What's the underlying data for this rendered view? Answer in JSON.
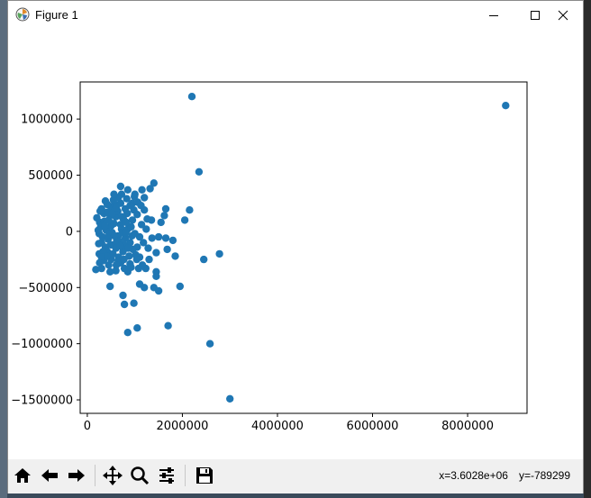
{
  "window": {
    "title": "Figure 1"
  },
  "toolbar": {
    "buttons": [
      {
        "name": "home-button",
        "icon": "home-icon"
      },
      {
        "name": "back-button",
        "icon": "arrow-left-icon"
      },
      {
        "name": "forward-button",
        "icon": "arrow-right-icon"
      },
      {
        "name": "pan-button",
        "icon": "move-icon"
      },
      {
        "name": "zoom-button",
        "icon": "magnifier-icon"
      },
      {
        "name": "configure-subplots-button",
        "icon": "sliders-icon"
      },
      {
        "name": "save-button",
        "icon": "floppy-disk-icon"
      }
    ],
    "x_readout": "x=3.6028e+06",
    "y_readout": "y=-789299"
  },
  "colors": {
    "marker": "#1f77b4",
    "toolbar": "#f0f0f0",
    "window": "#ffffff"
  },
  "chart_data": {
    "type": "scatter",
    "xlim": [
      -150000,
      9250000
    ],
    "ylim": [
      -1620000,
      1330000
    ],
    "xticks": [
      0,
      2000000,
      4000000,
      6000000,
      8000000
    ],
    "xtick_labels": [
      "0",
      "2000000",
      "4000000",
      "6000000",
      "8000000"
    ],
    "yticks": [
      -1500000,
      -1000000,
      -500000,
      0,
      500000,
      1000000
    ],
    "ytick_labels": [
      "−1500000",
      "−1000000",
      "−500000",
      "0",
      "500000",
      "1000000"
    ],
    "grid": false,
    "points": [
      [
        2200000,
        1200000
      ],
      [
        8800000,
        1120000
      ],
      [
        2350000,
        530000
      ],
      [
        3000000,
        -1490000
      ],
      [
        2580000,
        -1000000
      ],
      [
        1700000,
        -840000
      ],
      [
        850000,
        -900000
      ],
      [
        1050000,
        -860000
      ],
      [
        2780000,
        -200000
      ],
      [
        2450000,
        -250000
      ],
      [
        2150000,
        190000
      ],
      [
        2050000,
        100000
      ],
      [
        1950000,
        -490000
      ],
      [
        1400000,
        -500000
      ],
      [
        1450000,
        -360000
      ],
      [
        1500000,
        -530000
      ],
      [
        1200000,
        -500000
      ],
      [
        1100000,
        -470000
      ],
      [
        980000,
        -640000
      ],
      [
        750000,
        -570000
      ],
      [
        780000,
        -650000
      ],
      [
        480000,
        -490000
      ],
      [
        180000,
        -340000
      ],
      [
        1650000,
        200000
      ],
      [
        1620000,
        140000
      ],
      [
        1800000,
        -80000
      ],
      [
        1650000,
        -60000
      ],
      [
        1680000,
        -160000
      ],
      [
        1850000,
        -220000
      ],
      [
        1450000,
        -190000
      ],
      [
        1400000,
        430000
      ],
      [
        1320000,
        380000
      ],
      [
        1450000,
        -400000
      ],
      [
        1300000,
        -250000
      ],
      [
        1200000,
        190000
      ],
      [
        1350000,
        100000
      ],
      [
        1100000,
        -230000
      ],
      [
        1080000,
        -330000
      ],
      [
        850000,
        -360000
      ],
      [
        600000,
        -350000
      ],
      [
        300000,
        -330000
      ],
      [
        380000,
        270000
      ],
      [
        700000,
        400000
      ],
      [
        850000,
        370000
      ],
      [
        1000000,
        330000
      ],
      [
        1150000,
        370000
      ],
      [
        1200000,
        300000
      ],
      [
        950000,
        250000
      ],
      [
        1050000,
        150000
      ],
      [
        1100000,
        -50000
      ],
      [
        1050000,
        -140000
      ],
      [
        900000,
        -290000
      ],
      [
        700000,
        -280000
      ],
      [
        500000,
        -250000
      ],
      [
        250000,
        -200000
      ],
      [
        200000,
        120000
      ],
      [
        260000,
        80000
      ],
      [
        300000,
        -100000
      ],
      [
        250000,
        -20000
      ],
      [
        350000,
        160000
      ],
      [
        420000,
        -180000
      ],
      [
        500000,
        220000
      ],
      [
        550000,
        -120000
      ],
      [
        600000,
        130000
      ],
      [
        650000,
        -40000
      ],
      [
        700000,
        60000
      ],
      [
        750000,
        -180000
      ],
      [
        800000,
        200000
      ],
      [
        850000,
        20000
      ],
      [
        900000,
        -100000
      ],
      [
        950000,
        100000
      ],
      [
        1000000,
        -20000
      ],
      [
        280000,
        40000
      ],
      [
        320000,
        -50000
      ],
      [
        360000,
        90000
      ],
      [
        400000,
        10000
      ],
      [
        440000,
        -70000
      ],
      [
        480000,
        140000
      ],
      [
        520000,
        -10000
      ],
      [
        560000,
        70000
      ],
      [
        600000,
        -150000
      ],
      [
        640000,
        180000
      ],
      [
        680000,
        -90000
      ],
      [
        720000,
        20000
      ],
      [
        760000,
        110000
      ],
      [
        800000,
        -60000
      ],
      [
        840000,
        160000
      ],
      [
        880000,
        -220000
      ],
      [
        920000,
        40000
      ],
      [
        960000,
        -160000
      ],
      [
        300000,
        200000
      ],
      [
        340000,
        -260000
      ],
      [
        380000,
        -140000
      ],
      [
        420000,
        170000
      ],
      [
        460000,
        -30000
      ],
      [
        500000,
        50000
      ],
      [
        540000,
        -200000
      ],
      [
        580000,
        240000
      ],
      [
        620000,
        -80000
      ],
      [
        660000,
        -230000
      ],
      [
        700000,
        250000
      ],
      [
        740000,
        -10000
      ],
      [
        780000,
        -120000
      ],
      [
        820000,
        80000
      ],
      [
        860000,
        -150000
      ],
      [
        900000,
        230000
      ],
      [
        940000,
        -40000
      ],
      [
        980000,
        190000
      ],
      [
        1020000,
        -210000
      ],
      [
        1060000,
        260000
      ],
      [
        1140000,
        60000
      ],
      [
        1180000,
        -100000
      ],
      [
        1240000,
        20000
      ],
      [
        1280000,
        -150000
      ],
      [
        330000,
        -180000
      ],
      [
        370000,
        50000
      ],
      [
        410000,
        -220000
      ],
      [
        450000,
        100000
      ],
      [
        490000,
        -120000
      ],
      [
        530000,
        160000
      ],
      [
        570000,
        -40000
      ],
      [
        610000,
        210000
      ],
      [
        650000,
        -260000
      ],
      [
        690000,
        -130000
      ],
      [
        730000,
        130000
      ],
      [
        770000,
        -250000
      ],
      [
        810000,
        -10000
      ],
      [
        650000,
        300000
      ],
      [
        720000,
        330000
      ],
      [
        830000,
        290000
      ],
      [
        300000,
        -230000
      ],
      [
        270000,
        180000
      ],
      [
        240000,
        -110000
      ],
      [
        230000,
        10000
      ],
      [
        610000,
        -300000
      ],
      [
        550000,
        280000
      ],
      [
        450000,
        -300000
      ],
      [
        780000,
        -330000
      ],
      [
        920000,
        -320000
      ],
      [
        990000,
        310000
      ],
      [
        1130000,
        230000
      ],
      [
        1230000,
        -330000
      ],
      [
        1360000,
        -60000
      ],
      [
        1500000,
        -50000
      ],
      [
        1550000,
        80000
      ],
      [
        1260000,
        110000
      ],
      [
        1160000,
        -300000
      ],
      [
        1040000,
        -250000
      ],
      [
        480000,
        -360000
      ],
      [
        260000,
        -280000
      ],
      [
        560000,
        330000
      ],
      [
        420000,
        240000
      ]
    ]
  }
}
